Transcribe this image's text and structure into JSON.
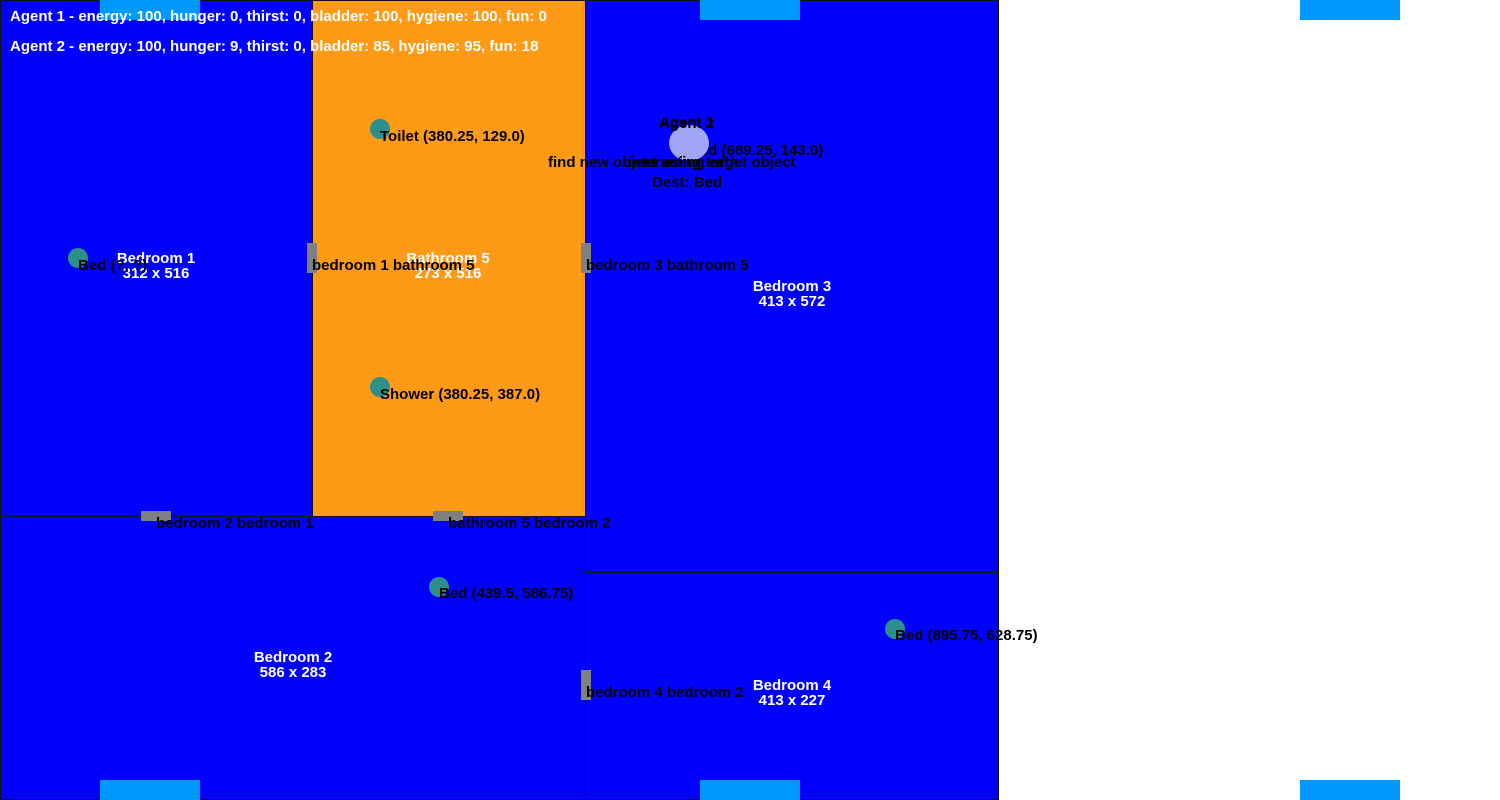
{
  "colors": {
    "bedroom": "#0000ff",
    "bathroom": "#ff9a16",
    "window": "#0099ff",
    "door": "#808080",
    "object": "#2b8f8a",
    "agent": "#a0a6f5"
  },
  "rooms": [
    {
      "name": "Bedroom 1",
      "size": "312 x 516"
    },
    {
      "name": "Bathroom 5",
      "size": "273 x 516"
    },
    {
      "name": "Bedroom 3",
      "size": "413 x 572"
    },
    {
      "name": "Bedroom 2",
      "size": "586 x 283"
    },
    {
      "name": "Bedroom 4",
      "size": "413 x 227"
    }
  ],
  "doors": [
    "bedroom 1 bathroom 5",
    "bedroom 3 bathroom 5",
    "bedroom 2 bedroom 1",
    "bathroom 5 bedroom 2",
    "bedroom 4 bedroom 2"
  ],
  "objects": [
    {
      "label": "Toilet (380.25, 129.0)"
    },
    {
      "label": "Shower (380.25, 387.0)"
    },
    {
      "label": "Bed (?, ?)"
    },
    {
      "label": "Bed (689.25, 143.0)"
    },
    {
      "label": "Bed (439.5, 586.75)"
    },
    {
      "label": "Bed (895.75, 628.75)"
    }
  ],
  "status": {
    "agent1": "Agent 1 - energy: 100, hunger: 0, thirst: 0, bladder: 100, hygiene: 100, fun: 0",
    "agent2": "Agent 2 - energy: 100, hunger: 9, thirst: 0, bladder: 85, hygiene: 95, fun: 18"
  },
  "agents": {
    "agent1": {
      "name": "Agent 1",
      "status": "find new object using target object",
      "dest": "Dest: Bed"
    },
    "agent2": {
      "name": "Agent 2",
      "status": "interacting with"
    }
  }
}
